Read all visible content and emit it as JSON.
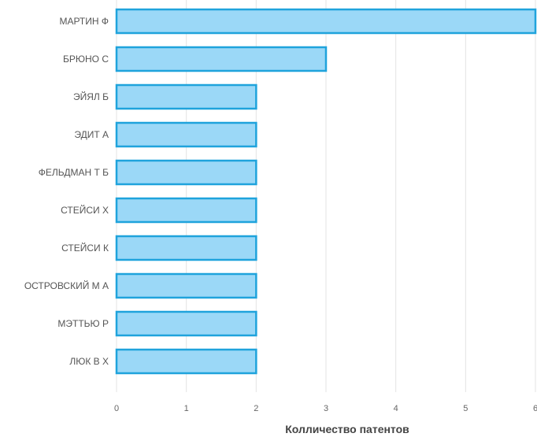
{
  "chart_data": {
    "type": "bar",
    "orientation": "horizontal",
    "categories": [
      "МАРТИН Ф",
      "БРЮНО С",
      "ЭЙЯЛ Б",
      "ЭДИТ А",
      "ФЕЛЬДМАН Т Б",
      "СТЕЙСИ Х",
      "СТЕЙСИ К",
      "ОСТРОВСКИЙ М А",
      "МЭТТЬЮ Р",
      "ЛЮК В Х"
    ],
    "values": [
      6,
      3,
      2,
      2,
      2,
      2,
      2,
      2,
      2,
      2
    ],
    "xlabel": "Колличество патентов",
    "ylabel": "",
    "xlim": [
      0,
      6
    ],
    "xticks": [
      0,
      1,
      2,
      3,
      4,
      5,
      6
    ],
    "grid": true,
    "colors": {
      "bar_fill": "#9bd8f7",
      "bar_stroke": "#1fa3dc"
    }
  }
}
